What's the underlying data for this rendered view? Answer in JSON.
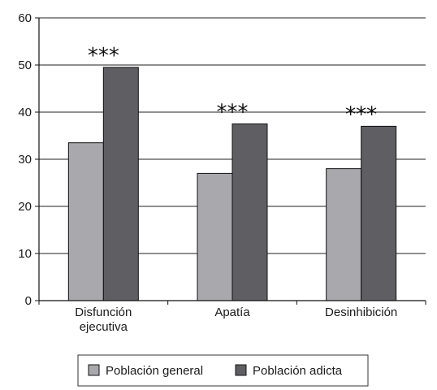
{
  "chart_data": {
    "type": "bar",
    "categories": [
      [
        "Disfunción",
        "ejecutiva"
      ],
      [
        "Apatía"
      ],
      [
        "Desinhibición"
      ]
    ],
    "series": [
      {
        "name": "Población general",
        "color": "#a9a9ad",
        "values": [
          33.5,
          27,
          28
        ]
      },
      {
        "name": "Población adicta",
        "color": "#5f5f63",
        "values": [
          49.5,
          37.5,
          37
        ]
      }
    ],
    "significance": [
      "***",
      "***",
      "***"
    ],
    "ylim": [
      0,
      60
    ],
    "yticks": [
      0,
      10,
      20,
      30,
      40,
      50,
      60
    ],
    "grid": true,
    "legend_position": "bottom"
  }
}
